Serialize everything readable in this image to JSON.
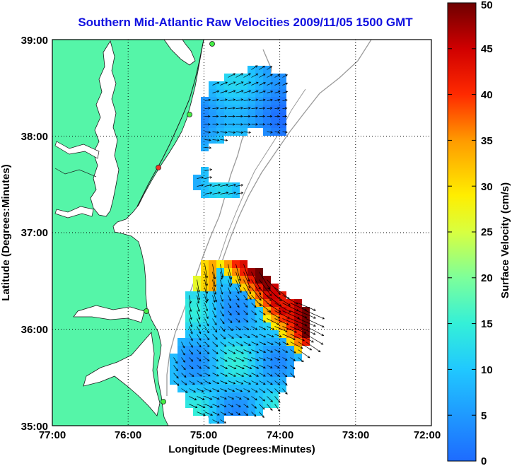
{
  "title": "Southern Mid-Atlantic Raw Velocities 2009/11/05 1500 GMT",
  "axes": {
    "xlabel": "Longitude (Degrees:Minutes)",
    "ylabel": "Latitude (Degrees:Minutes)",
    "x_ticks": [
      "77:00",
      "76:00",
      "75:00",
      "74:00",
      "73:00",
      "72:00"
    ],
    "y_ticks": [
      "39:00",
      "38:00",
      "37:00",
      "36:00",
      "35:00"
    ],
    "xlim": [
      -77,
      -72
    ],
    "ylim": [
      35,
      39
    ],
    "grid": true
  },
  "colorbar": {
    "label": "Surface Velocity (cm/s)",
    "ticks": [
      "0",
      "5",
      "10",
      "15",
      "20",
      "25",
      "30",
      "35",
      "40",
      "45",
      "50"
    ],
    "range": [
      0,
      50
    ]
  },
  "colors": {
    "land": "#55f5a8",
    "water": "#ffffff",
    "title": "#1010e0",
    "isobath": "#9a9a9a"
  }
}
